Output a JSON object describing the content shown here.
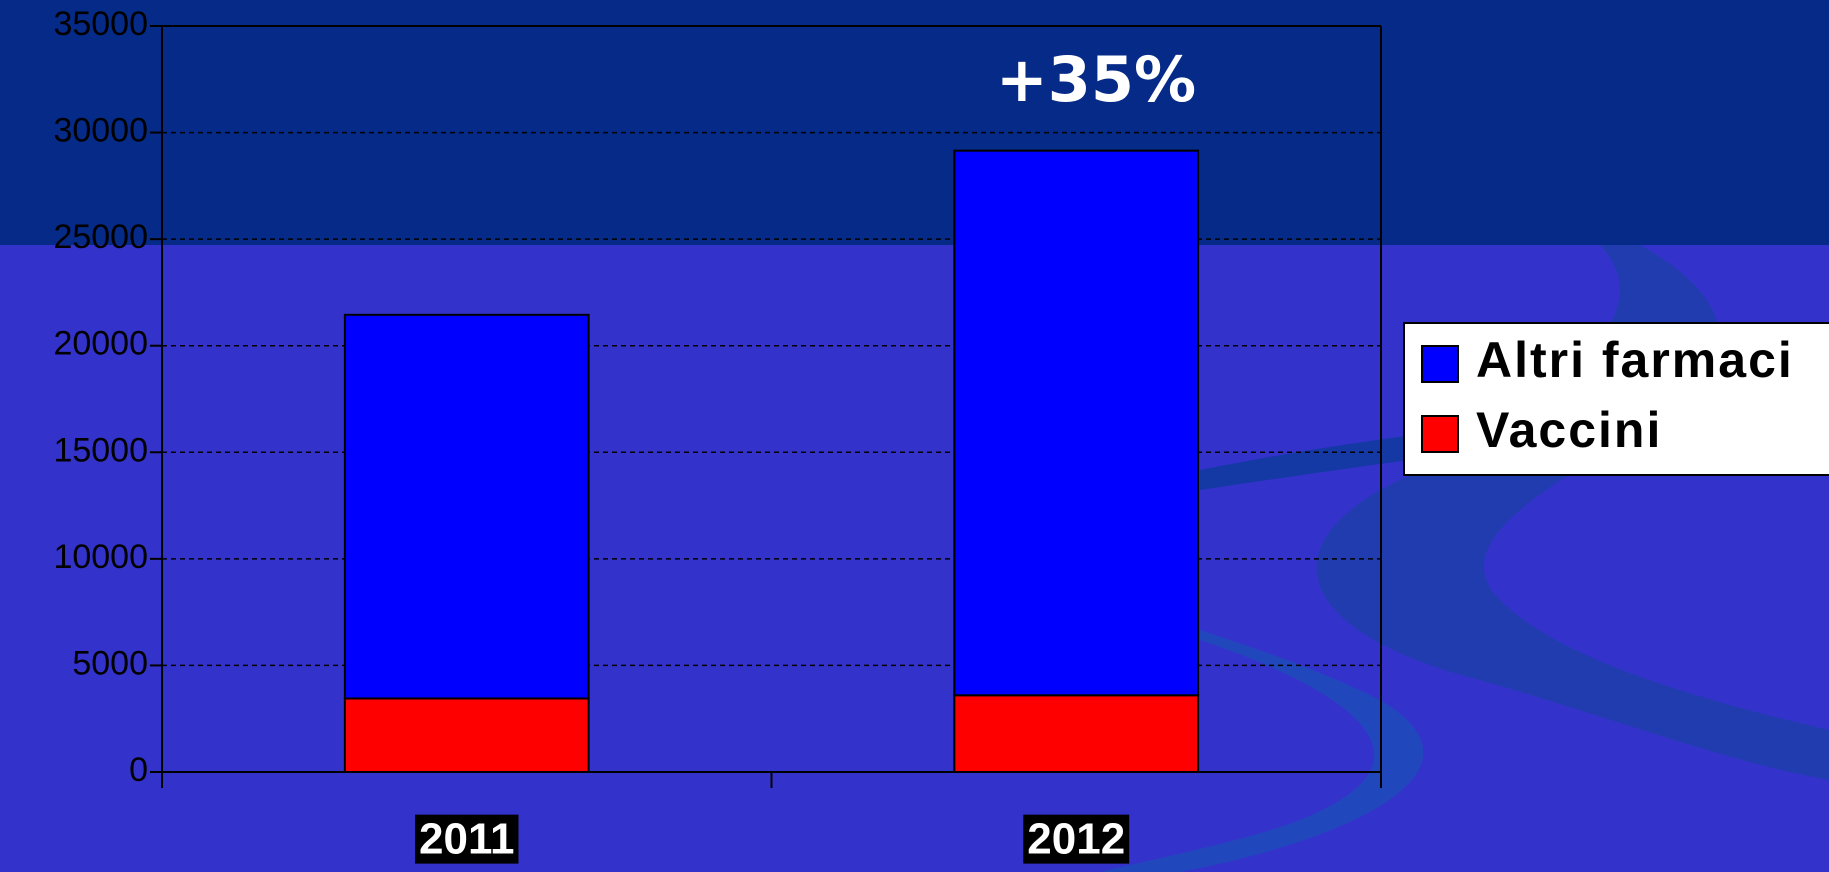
{
  "chart_data": {
    "type": "stacked_bar",
    "categories": [
      "2011",
      "2012"
    ],
    "series": [
      {
        "name": "Vaccini",
        "color": "#ff0000",
        "values": [
          3450,
          3600
        ]
      },
      {
        "name": "Altri farmaci",
        "color": "#0000ff",
        "values": [
          18000,
          25550
        ]
      }
    ],
    "annotation": "+35%",
    "ylim": [
      0,
      35000
    ],
    "yticks": [
      0,
      5000,
      10000,
      15000,
      20000,
      25000,
      30000,
      35000
    ],
    "grid": true
  }
}
